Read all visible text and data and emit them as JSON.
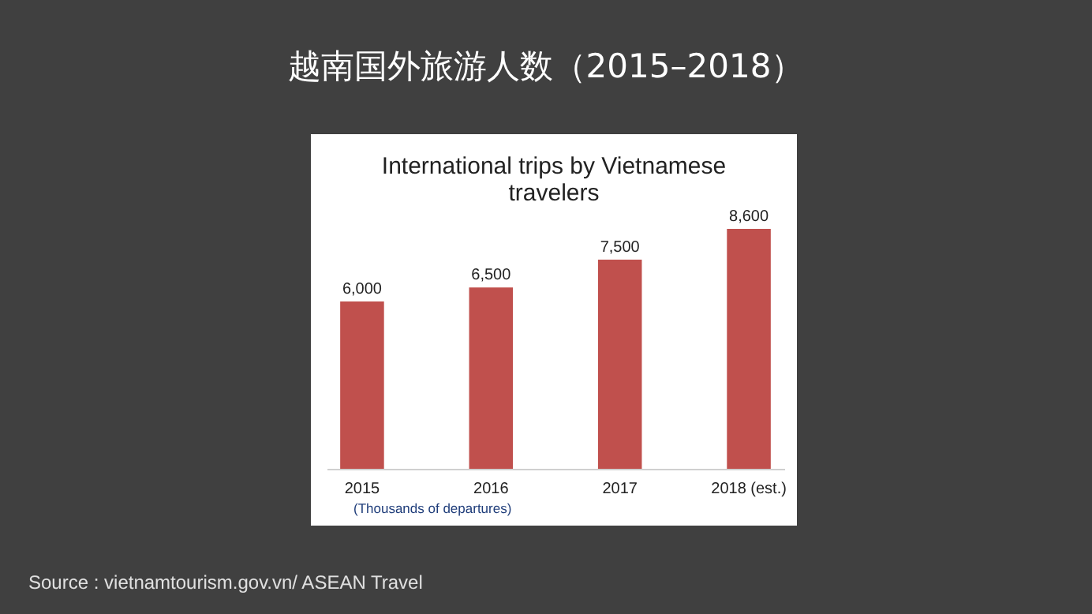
{
  "chart_data": {
    "type": "bar",
    "title": "越南国外旅游人数（2015–2018）",
    "subtitle": "International trips by Vietnamese travelers",
    "categories": [
      "2015",
      "2016",
      "2017",
      "2018 (est.)"
    ],
    "values": [
      6000,
      6500,
      7500,
      8600
    ],
    "color": "#c0504d",
    "value_labels": [
      "6,000",
      "6,500",
      "7,500",
      "8,600"
    ],
    "annotations": [
      "(Thousands of departures)",
      "Source : vietnamtourism.gov.vn/ ASEAN Travel"
    ]
  }
}
